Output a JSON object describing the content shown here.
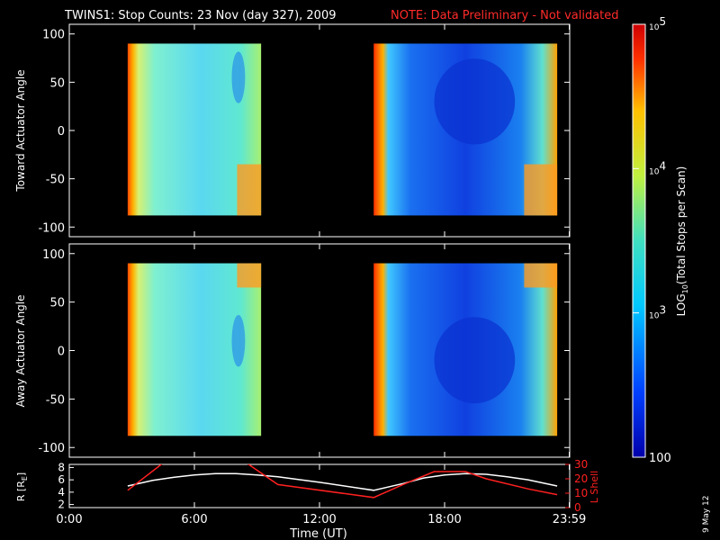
{
  "title": {
    "main": "TWINS1: Stop Counts: 23 Nov (day 327), 2009",
    "note": "NOTE: Data Preliminary - Not validated",
    "note_color": "#ff2a2a"
  },
  "stamp": "9 May 12",
  "chart_data": [
    {
      "type": "heatmap",
      "ylabel": "Toward Actuator Angle",
      "ylim": [
        -110,
        110
      ],
      "yticks": [
        "100",
        "50",
        "0",
        "-50",
        "-100"
      ],
      "ytick_values": [
        100,
        50,
        0,
        -50,
        -100
      ],
      "xlim_hours": [
        0,
        24
      ],
      "data_blocks_hours": [
        [
          2.8,
          9.2
        ],
        [
          14.6,
          23.4
        ]
      ],
      "angle_range": [
        -88,
        90
      ]
    },
    {
      "type": "heatmap",
      "ylabel": "Away Actuator Angle",
      "ylim": [
        -110,
        110
      ],
      "yticks": [
        "100",
        "50",
        "0",
        "-50",
        "-100"
      ],
      "ytick_values": [
        100,
        50,
        0,
        -50,
        -100
      ],
      "xlim_hours": [
        0,
        24
      ],
      "data_blocks_hours": [
        [
          2.8,
          9.2
        ],
        [
          14.6,
          23.4
        ]
      ],
      "angle_range": [
        -88,
        90
      ]
    },
    {
      "type": "line",
      "ylabel_left": "R [R",
      "ylabel_left_sub": "E",
      "ylabel_left_end": "]",
      "ylim_left": [
        1.5,
        8.5
      ],
      "yticks_left": [
        "8",
        "6",
        "4",
        "2"
      ],
      "ytick_values_left": [
        8,
        6,
        4,
        2
      ],
      "ylabel_right": "L Shell",
      "ylim_right": [
        0,
        30
      ],
      "yticks_right": [
        "30",
        "20",
        "10",
        "0"
      ],
      "ytick_values_right": [
        30,
        20,
        10,
        0
      ],
      "right_axis_color": "#ff2020",
      "xlabel": "Time (UT)",
      "xticks": [
        "0:00",
        "6:00",
        "12:00",
        "18:00",
        "23:59"
      ],
      "xtick_values": [
        0,
        6,
        12,
        18,
        23.98
      ],
      "series": [
        {
          "axis": "left",
          "color": "#ffffff",
          "x": [
            2.8,
            4,
            5,
            6,
            7,
            8,
            9,
            10,
            12,
            14,
            14.6,
            16,
            17,
            18,
            19,
            20,
            21,
            22,
            23.4
          ],
          "y": [
            5.0,
            5.9,
            6.4,
            6.8,
            7.0,
            7.0,
            6.8,
            6.5,
            5.6,
            4.6,
            4.3,
            5.4,
            6.3,
            6.8,
            7.0,
            6.9,
            6.5,
            6.0,
            5.0
          ]
        },
        {
          "axis": "right",
          "color": "#ff2020",
          "x": [
            2.8,
            4.5,
            8.5,
            10,
            14.6,
            16,
            17.5,
            19,
            20,
            22,
            23.4
          ],
          "y": [
            12,
            31,
            31,
            16,
            7,
            16,
            25,
            25,
            20,
            13,
            9
          ]
        }
      ]
    }
  ],
  "colorbar": {
    "label_pre": "LOG",
    "label_sub": "10",
    "label_post": "(Total Stops per Scan)",
    "ticks": [
      {
        "base": "10",
        "exp": "5",
        "value": 100000
      },
      {
        "base": "10",
        "exp": "4",
        "value": 10000
      },
      {
        "base": "10",
        "exp": "3",
        "value": 1000
      },
      {
        "base": "100",
        "exp": "",
        "value": 100
      }
    ],
    "range": [
      100,
      100000
    ]
  }
}
